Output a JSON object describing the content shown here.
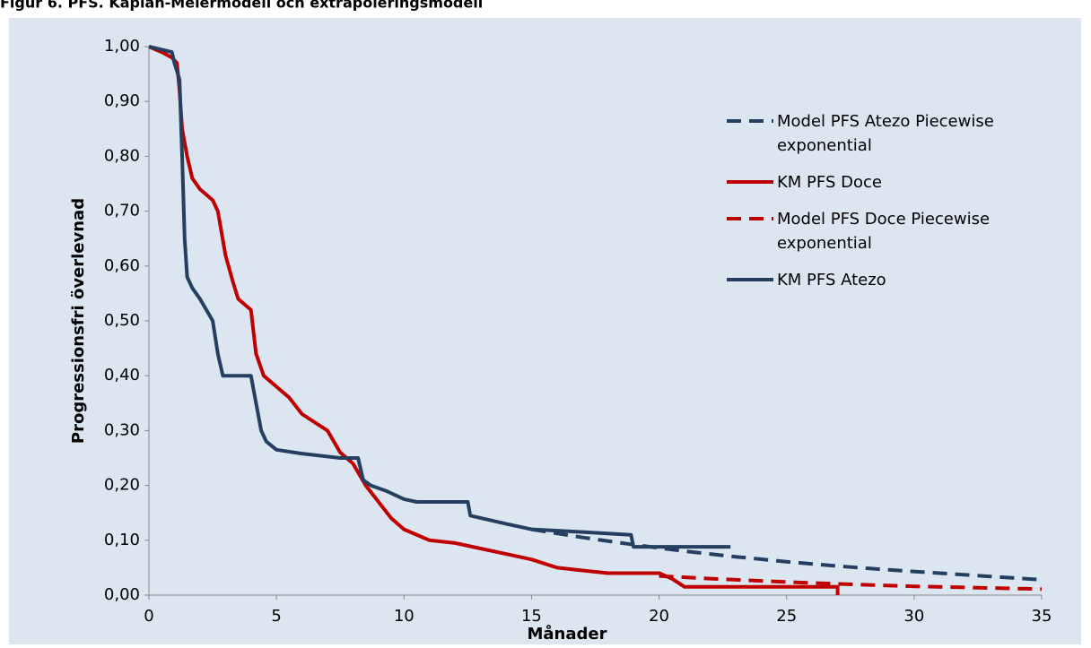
{
  "chart_data": {
    "type": "line",
    "title": "Figur 6. PFS. Kaplan-Meiermodell och extrapoleringsmodell",
    "xlabel": "Månader",
    "ylabel": "Progressionsfri överlevnad",
    "xlim": [
      0,
      35
    ],
    "xticks": [
      0,
      5,
      10,
      15,
      20,
      25,
      30,
      35
    ],
    "ylim": [
      0,
      1
    ],
    "yticks": [
      {
        "value": 0,
        "label": "0,00"
      },
      {
        "value": 0.1,
        "label": "0,10"
      },
      {
        "value": 0.2,
        "label": "0,20"
      },
      {
        "value": 0.3,
        "label": "0,30"
      },
      {
        "value": 0.4,
        "label": "0,40"
      },
      {
        "value": 0.5,
        "label": "0,50"
      },
      {
        "value": 0.6,
        "label": "0,60"
      },
      {
        "value": 0.7,
        "label": "0,70"
      },
      {
        "value": 0.8,
        "label": "0,80"
      },
      {
        "value": 0.9,
        "label": "0,90"
      },
      {
        "value": 1,
        "label": "1,00"
      }
    ],
    "legend": "right",
    "series": [
      {
        "name": "Model PFS Atezo Piecewise exponential",
        "color": "#243f60",
        "dashed": true,
        "x": [
          15,
          17,
          19,
          21,
          23,
          25,
          27,
          29,
          31,
          33,
          35
        ],
        "values": [
          0.12,
          0.105,
          0.092,
          0.08,
          0.07,
          0.061,
          0.053,
          0.046,
          0.04,
          0.034,
          0.028
        ]
      },
      {
        "name": "KM PFS Doce",
        "color": "#c00000",
        "dashed": false,
        "x": [
          0,
          0.5,
          0.9,
          1.1,
          1.2,
          1.3,
          1.5,
          1.7,
          2,
          2.5,
          2.7,
          3,
          3.3,
          3.5,
          4,
          4.2,
          4.5,
          5,
          5.5,
          6,
          7,
          7.5,
          8,
          8.5,
          9,
          9.5,
          10,
          11,
          12,
          13,
          14,
          15,
          16,
          17,
          18,
          20,
          20.5,
          21,
          23,
          25,
          27,
          27
        ],
        "values": [
          1,
          0.99,
          0.98,
          0.97,
          0.92,
          0.85,
          0.8,
          0.76,
          0.74,
          0.72,
          0.7,
          0.62,
          0.57,
          0.54,
          0.52,
          0.44,
          0.4,
          0.38,
          0.36,
          0.33,
          0.3,
          0.26,
          0.24,
          0.2,
          0.17,
          0.14,
          0.12,
          0.1,
          0.095,
          0.085,
          0.075,
          0.065,
          0.05,
          0.045,
          0.04,
          0.04,
          0.03,
          0.015,
          0.015,
          0.015,
          0.015,
          0
        ]
      },
      {
        "name": "Model PFS Doce Piecewise exponential",
        "color": "#c00000",
        "dashed": true,
        "x": [
          20,
          22,
          24,
          26,
          28,
          30,
          32,
          35
        ],
        "values": [
          0.035,
          0.03,
          0.026,
          0.022,
          0.019,
          0.016,
          0.014,
          0.011
        ]
      },
      {
        "name": "KM PFS Atezo",
        "color": "#243f60",
        "dashed": false,
        "x": [
          0,
          0.9,
          1,
          1.2,
          1.3,
          1.4,
          1.5,
          1.7,
          2,
          2.5,
          2.7,
          2.9,
          4,
          4.2,
          4.4,
          4.6,
          5,
          6,
          7.5,
          8.2,
          8.4,
          8.7,
          9.3,
          10,
          10.5,
          12.5,
          12.6,
          14,
          15,
          17,
          18.9,
          19,
          22.8
        ],
        "values": [
          1,
          0.99,
          0.97,
          0.94,
          0.8,
          0.65,
          0.58,
          0.56,
          0.54,
          0.5,
          0.44,
          0.4,
          0.4,
          0.35,
          0.3,
          0.28,
          0.265,
          0.258,
          0.25,
          0.25,
          0.21,
          0.2,
          0.19,
          0.175,
          0.17,
          0.17,
          0.145,
          0.13,
          0.12,
          0.115,
          0.11,
          0.088,
          0.088
        ]
      }
    ]
  }
}
